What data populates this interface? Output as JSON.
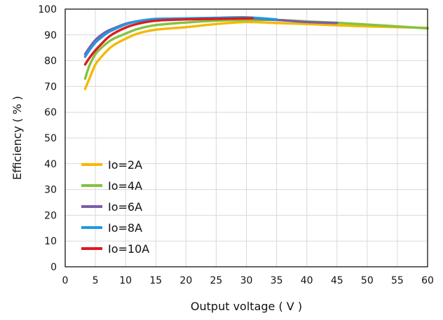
{
  "chart_data": {
    "type": "line",
    "title": "",
    "xlabel": "Output voltage ( V )",
    "ylabel": "Efficiency ( % )",
    "xlim": [
      0,
      60
    ],
    "ylim": [
      0,
      100
    ],
    "xticks": [
      0,
      5,
      10,
      15,
      20,
      25,
      30,
      35,
      40,
      45,
      50,
      55,
      60
    ],
    "yticks": [
      0,
      10,
      20,
      30,
      40,
      50,
      60,
      70,
      80,
      90,
      100
    ],
    "grid": true,
    "legend_position": "lower-left",
    "series": [
      {
        "name": "Io=2A",
        "color": "#F5B800",
        "points": [
          [
            3.3,
            69
          ],
          [
            4,
            73
          ],
          [
            5,
            78.5
          ],
          [
            6,
            81.5
          ],
          [
            7,
            84
          ],
          [
            8,
            86
          ],
          [
            10,
            88.5
          ],
          [
            12,
            90.5
          ],
          [
            15,
            92
          ],
          [
            20,
            93
          ],
          [
            25,
            94.2
          ],
          [
            30,
            95
          ],
          [
            35,
            94.6
          ],
          [
            40,
            94.2
          ],
          [
            45,
            93.7
          ],
          [
            50,
            93.3
          ],
          [
            55,
            93
          ],
          [
            60,
            92.7
          ]
        ]
      },
      {
        "name": "Io=4A",
        "color": "#82C341",
        "points": [
          [
            3.3,
            73
          ],
          [
            4,
            78
          ],
          [
            5,
            82.5
          ],
          [
            6,
            85
          ],
          [
            7,
            87
          ],
          [
            8,
            88.5
          ],
          [
            10,
            90.5
          ],
          [
            12,
            92.3
          ],
          [
            15,
            93.8
          ],
          [
            20,
            94.8
          ],
          [
            25,
            95.5
          ],
          [
            30,
            95.8
          ],
          [
            35,
            95.8
          ],
          [
            40,
            95.2
          ],
          [
            45,
            94.7
          ],
          [
            50,
            94
          ],
          [
            55,
            93.3
          ],
          [
            60,
            92.5
          ]
        ]
      },
      {
        "name": "Io=6A",
        "color": "#7B5EA7",
        "points": [
          [
            3.3,
            82.5
          ],
          [
            4,
            85
          ],
          [
            5,
            88
          ],
          [
            6,
            90
          ],
          [
            7,
            91.5
          ],
          [
            8,
            92.5
          ],
          [
            10,
            94.3
          ],
          [
            12,
            95.3
          ],
          [
            15,
            96
          ],
          [
            20,
            96.3
          ],
          [
            25,
            96.5
          ],
          [
            30,
            96.5
          ],
          [
            35,
            95.8
          ],
          [
            40,
            95
          ],
          [
            45,
            94.6
          ]
        ]
      },
      {
        "name": "Io=8A",
        "color": "#1E9BE0",
        "points": [
          [
            3.3,
            81.5
          ],
          [
            4,
            84
          ],
          [
            5,
            87
          ],
          [
            6,
            89
          ],
          [
            7,
            90.8
          ],
          [
            8,
            92
          ],
          [
            10,
            94
          ],
          [
            12,
            95.3
          ],
          [
            15,
            96.2
          ],
          [
            20,
            96.4
          ],
          [
            25,
            96.6
          ],
          [
            30,
            96.8
          ],
          [
            35,
            96
          ]
        ]
      },
      {
        "name": "Io=10A",
        "color": "#E0191F",
        "points": [
          [
            3.3,
            78.5
          ],
          [
            4,
            81
          ],
          [
            5,
            84
          ],
          [
            6,
            86.5
          ],
          [
            7,
            88.8
          ],
          [
            8,
            90.5
          ],
          [
            10,
            92.8
          ],
          [
            12,
            94.3
          ],
          [
            15,
            95.5
          ],
          [
            20,
            96
          ],
          [
            25,
            96.2
          ],
          [
            30,
            96.4
          ],
          [
            31,
            96.5
          ]
        ]
      }
    ]
  }
}
